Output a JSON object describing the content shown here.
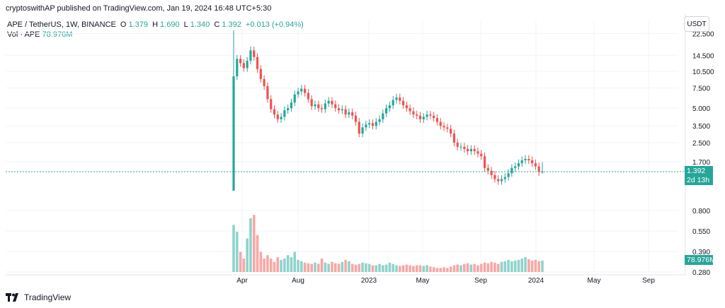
{
  "publisher": "cryptoswithAP published on TradingView.com, Jan 19, 2024 16:48 UTC+5:30",
  "legend": {
    "symbol": "APE / TetherUS, 1W, BINANCE",
    "open_label": "O",
    "open": "1.379",
    "high_label": "H",
    "high": "1.690",
    "low_label": "L",
    "low": "1.340",
    "close_label": "C",
    "close": "1.392",
    "change": "+0.013 (+0.94%)",
    "vol_label": "Vol · APE",
    "vol_value": "78.976M"
  },
  "currency_button": "USDT",
  "last_price_label": "1.392",
  "countdown_label": "2d 13h",
  "volume_label": "78.976M",
  "branding": "TradingView",
  "colors": {
    "up": "#26a69a",
    "down": "#ef5350",
    "up_volume": "#8fd3cb",
    "down_volume": "#f7a8a5",
    "last_price": "#26a69a"
  },
  "chart_data": {
    "type": "candlestick",
    "title": "APE / TetherUS, 1W, BINANCE",
    "y_axis_scale": "log",
    "y_ticks_price": [
      "22.500",
      "14.500",
      "10.500",
      "7.500",
      "5.000",
      "3.500",
      "2.500",
      "1.700"
    ],
    "y_ticks_volume": [
      "0.800",
      "0.550",
      "0.390",
      "0.280"
    ],
    "x_ticks": [
      "Apr",
      "Aug",
      "2023",
      "May",
      "Sep",
      "2024",
      "May",
      "Sep"
    ],
    "price_range": [
      0.8,
      25
    ],
    "last_price": 1.392,
    "grid": true,
    "candles_close": [
      9.5,
      13.5,
      12.4,
      11.2,
      13.0,
      16.0,
      14.0,
      11.0,
      9.0,
      7.8,
      6.0,
      4.9,
      4.4,
      4.0,
      4.2,
      4.8,
      5.0,
      5.6,
      6.6,
      7.0,
      7.4,
      6.8,
      6.0,
      5.2,
      5.4,
      5.0,
      4.9,
      5.5,
      5.8,
      5.4,
      5.0,
      4.8,
      4.9,
      4.4,
      4.6,
      4.3,
      3.8,
      3.0,
      3.4,
      3.6,
      3.7,
      3.5,
      3.8,
      4.0,
      4.5,
      5.0,
      5.3,
      5.9,
      6.2,
      5.8,
      5.3,
      5.0,
      4.7,
      4.4,
      4.3,
      4.0,
      4.2,
      4.4,
      4.3,
      4.1,
      3.8,
      3.5,
      3.4,
      3.3,
      3.0,
      2.5,
      2.3,
      2.3,
      2.2,
      2.1,
      2.2,
      2.1,
      2.0,
      1.9,
      1.5,
      1.42,
      1.3,
      1.2,
      1.15,
      1.2,
      1.25,
      1.35,
      1.5,
      1.55,
      1.65,
      1.75,
      1.8,
      1.75,
      1.65,
      1.55,
      1.379,
      1.392
    ],
    "volume_relative": [
      0.7,
      0.6,
      0.3,
      0.2,
      0.5,
      0.8,
      0.85,
      0.55,
      0.3,
      0.2,
      0.25,
      0.2,
      0.15,
      0.22,
      0.18,
      0.2,
      0.25,
      0.22,
      0.3,
      0.18,
      0.16,
      0.14,
      0.13,
      0.12,
      0.14,
      0.12,
      0.2,
      0.14,
      0.12,
      0.15,
      0.13,
      0.12,
      0.15,
      0.18,
      0.16,
      0.12,
      0.11,
      0.12,
      0.14,
      0.13,
      0.12,
      0.1,
      0.1,
      0.12,
      0.1,
      0.11,
      0.14,
      0.12,
      0.1,
      0.09,
      0.1,
      0.11,
      0.1,
      0.09,
      0.1,
      0.1,
      0.09,
      0.1,
      0.08,
      0.07,
      0.06,
      0.06,
      0.07,
      0.06,
      0.08,
      0.1,
      0.11,
      0.1,
      0.12,
      0.13,
      0.11,
      0.12,
      0.1,
      0.12,
      0.14,
      0.13,
      0.15,
      0.14,
      0.12,
      0.15,
      0.16,
      0.18,
      0.16,
      0.17,
      0.18,
      0.2,
      0.22,
      0.19,
      0.17,
      0.18,
      0.16,
      0.17
    ]
  }
}
